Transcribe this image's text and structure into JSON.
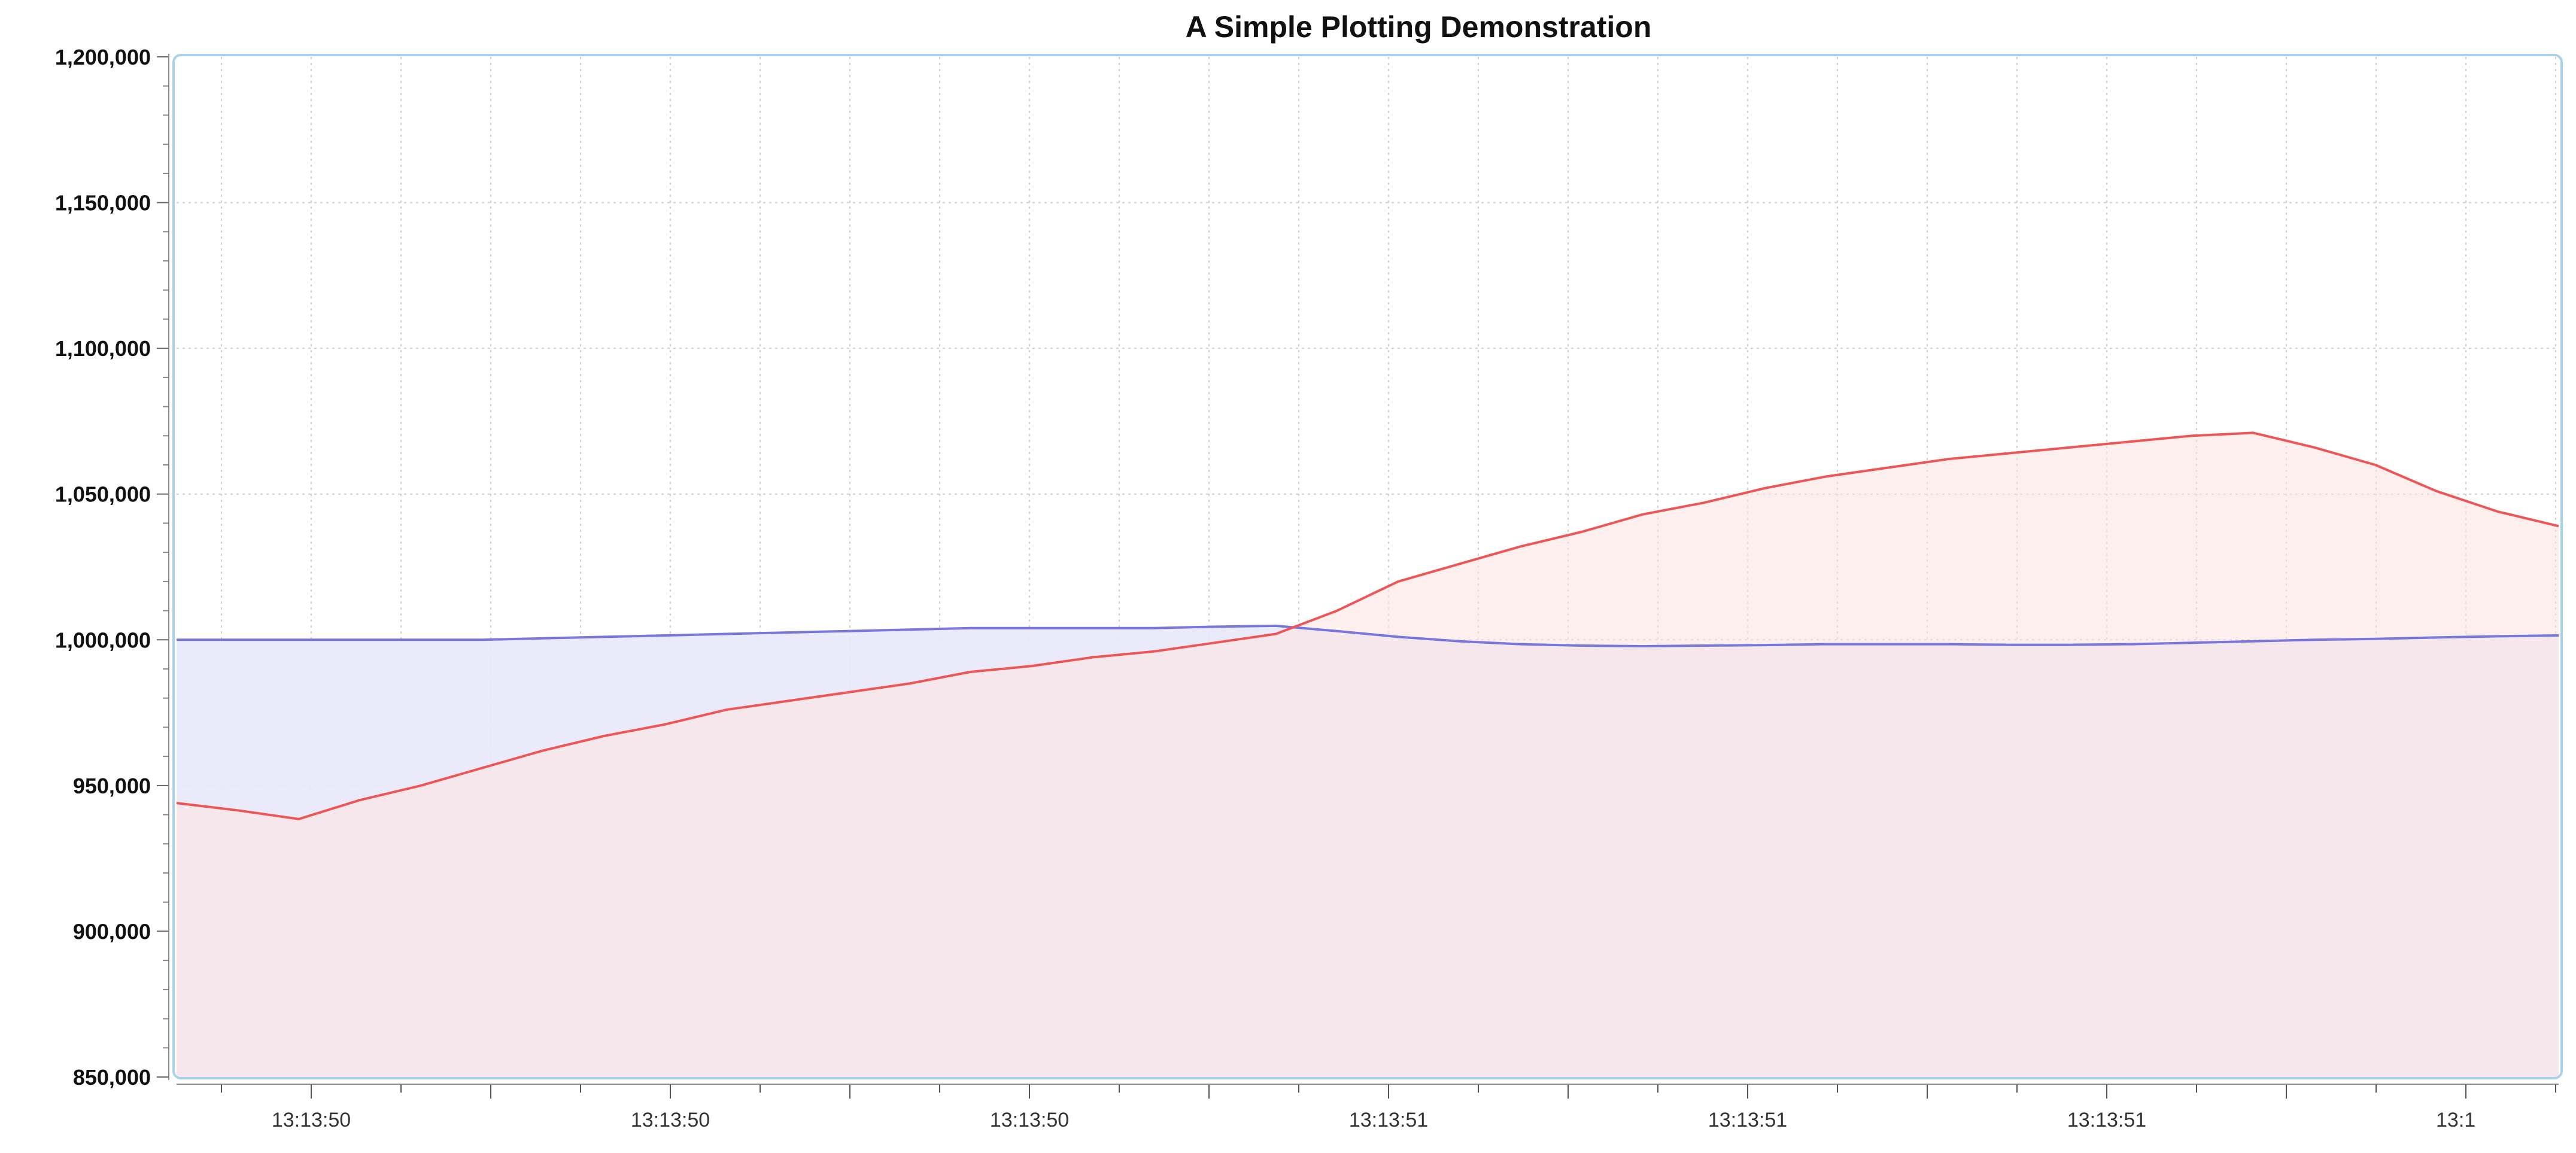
{
  "chart_data": {
    "type": "area",
    "title": "A Simple Plotting Demonstration",
    "xlabel": "",
    "ylabel": "",
    "ylim": [
      850000,
      1200000
    ],
    "y_ticks": [
      850000,
      900000,
      950000,
      1000000,
      1050000,
      1100000,
      1150000,
      1200000
    ],
    "y_tick_labels": [
      "850,000",
      "900,000",
      "950,000",
      "1,000,000",
      "1,050,000",
      "1,100,000",
      "1,150,000",
      "1,200,000"
    ],
    "x_tick_labels": [
      "13:13:50",
      "13:13:50",
      "13:13:50",
      "13:13:51",
      "13:13:51",
      "13:13:51",
      "13:1"
    ],
    "grid": true,
    "legend": "none",
    "series": [
      {
        "color": "#7777dd",
        "fill": "#e8e8fa",
        "values": [
          1000000,
          1000000,
          1000000,
          1000000,
          1000000,
          1000000,
          1000500,
          1001000,
          1001500,
          1002000,
          1002500,
          1003000,
          1003500,
          1004000,
          1004000,
          1004000,
          1004000,
          1004500,
          1004800,
          1003000,
          1001000,
          999500,
          998500,
          998000,
          997800,
          998000,
          998200,
          998500,
          998500,
          998500,
          998300,
          998300,
          998500,
          999000,
          999500,
          1000000,
          1000300,
          1000800,
          1001200,
          1001500
        ]
      },
      {
        "color": "#ee5555",
        "fill": "#fde4e4",
        "values": [
          944000,
          941500,
          938500,
          945000,
          950000,
          956000,
          962000,
          967000,
          971000,
          976000,
          979000,
          982000,
          985000,
          989000,
          991000,
          994000,
          996000,
          999000,
          1002000,
          1010000,
          1020000,
          1026000,
          1032000,
          1037000,
          1043000,
          1047000,
          1052000,
          1056000,
          1059000,
          1062000,
          1064000,
          1066000,
          1068000,
          1070000,
          1071000,
          1066000,
          1060000,
          1051000,
          1044000,
          1039000
        ]
      }
    ]
  }
}
